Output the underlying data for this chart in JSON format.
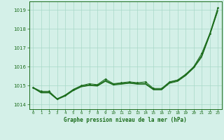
{
  "title": "Graphe pression niveau de la mer (hPa)",
  "x_labels": [
    "0",
    "1",
    "2",
    "3",
    "4",
    "5",
    "6",
    "7",
    "8",
    "9",
    "10",
    "11",
    "12",
    "13",
    "14",
    "15",
    "16",
    "17",
    "18",
    "19",
    "20",
    "21",
    "22",
    "23"
  ],
  "ylim": [
    1013.75,
    1019.45
  ],
  "yticks": [
    1014,
    1015,
    1016,
    1017,
    1018,
    1019
  ],
  "line_color": "#1a6b1a",
  "bg_color": "#d4f0e8",
  "grid_color": "#a8d8c8",
  "line1": [
    1014.9,
    1014.7,
    1014.7,
    1014.3,
    1014.5,
    1014.8,
    1015.0,
    1015.1,
    1015.05,
    1015.35,
    1015.1,
    1015.15,
    1015.2,
    1015.15,
    1015.2,
    1014.85,
    1014.85,
    1015.2,
    1015.3,
    1015.6,
    1016.0,
    1016.7,
    1017.75,
    1019.1
  ],
  "line2": [
    1014.9,
    1014.65,
    1014.65,
    1014.3,
    1014.5,
    1014.78,
    1014.98,
    1015.05,
    1015.02,
    1015.28,
    1015.08,
    1015.12,
    1015.17,
    1015.12,
    1015.12,
    1014.82,
    1014.82,
    1015.18,
    1015.28,
    1015.58,
    1015.98,
    1016.6,
    1017.72,
    1019.0
  ],
  "line3": [
    1014.88,
    1014.63,
    1014.63,
    1014.28,
    1014.47,
    1014.75,
    1014.95,
    1015.02,
    1014.99,
    1015.25,
    1015.05,
    1015.09,
    1015.14,
    1015.09,
    1015.09,
    1014.79,
    1014.79,
    1015.15,
    1015.25,
    1015.55,
    1015.95,
    1016.55,
    1017.68,
    1018.96
  ],
  "line4": [
    1014.87,
    1014.61,
    1014.61,
    1014.26,
    1014.44,
    1014.73,
    1014.93,
    1015.0,
    1014.97,
    1015.22,
    1015.03,
    1015.07,
    1015.12,
    1015.07,
    1015.07,
    1014.77,
    1014.77,
    1015.12,
    1015.22,
    1015.52,
    1015.92,
    1016.5,
    1017.65,
    1018.93
  ]
}
